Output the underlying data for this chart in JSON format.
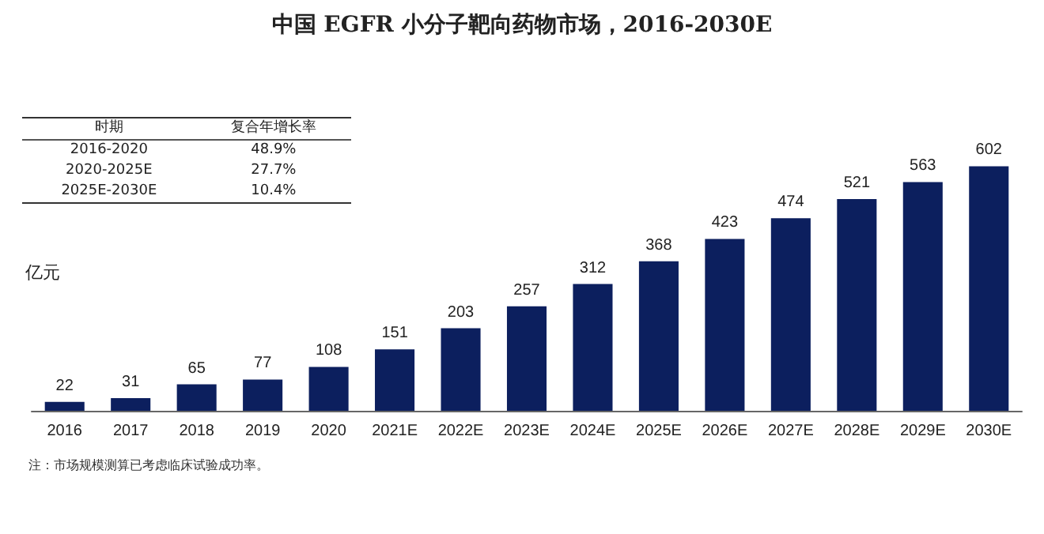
{
  "chart_data": {
    "type": "bar",
    "title": "中国 EGFR 小分子靶向药物市场，2016-2030E",
    "ylabel": "亿元",
    "categories": [
      "2016",
      "2017",
      "2018",
      "2019",
      "2020",
      "2021E",
      "2022E",
      "2023E",
      "2024E",
      "2025E",
      "2026E",
      "2027E",
      "2028E",
      "2029E",
      "2030E"
    ],
    "values": [
      22,
      31,
      65,
      77,
      108,
      151,
      203,
      257,
      312,
      368,
      423,
      474,
      521,
      563,
      602
    ],
    "color": "#0c1f5e",
    "data_labels": true,
    "annotations": [
      "时期",
      "复合年增长率",
      "2016-2020",
      "48.9%",
      "2020-2025E",
      "27.7%",
      "2025E-2030E",
      "10.4%",
      "注：市场规模测算已考虑临床试验成功率。"
    ]
  }
}
